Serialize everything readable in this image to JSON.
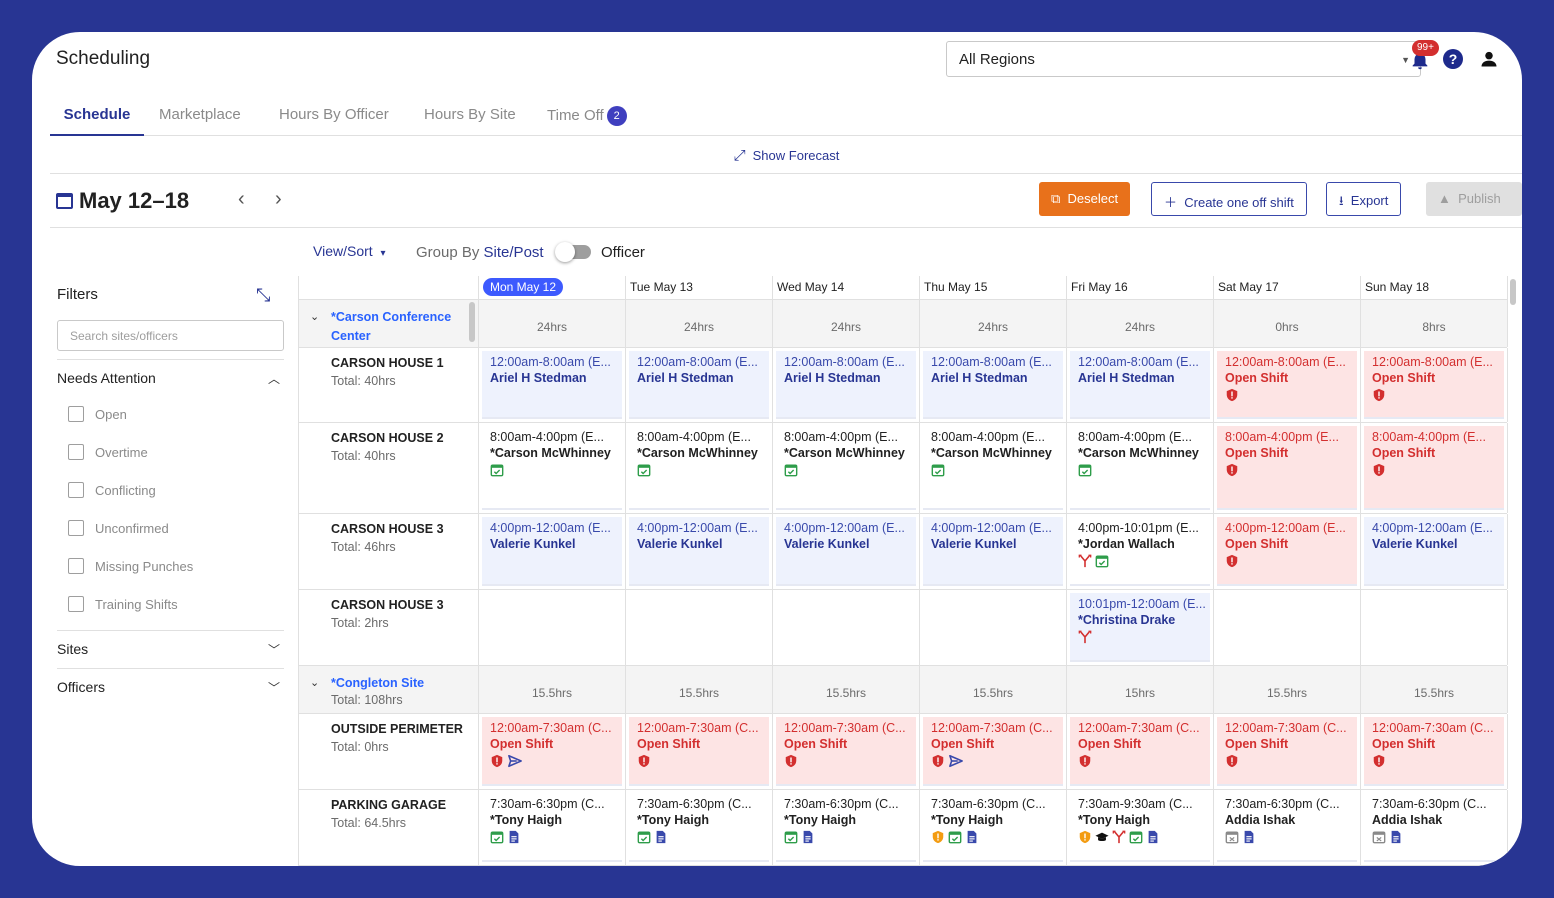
{
  "app": {
    "title": "Scheduling",
    "region_select": "All Regions",
    "notification_badge": "99+",
    "help_label": "?"
  },
  "tabs": [
    {
      "label": "Schedule",
      "active": true
    },
    {
      "label": "Marketplace"
    },
    {
      "label": "Hours By Officer"
    },
    {
      "label": "Hours By Site"
    },
    {
      "label": "Time Off",
      "badge": "2"
    }
  ],
  "forecast": {
    "label": "Show Forecast"
  },
  "toolbar": {
    "date_range": "May 12–18",
    "prev": "‹",
    "next": "›",
    "deselect": "Deselect",
    "create_shift": "Create one off shift",
    "export": "Export",
    "publish": "Publish"
  },
  "view": {
    "view_sort": "View/Sort",
    "group_by": "Group By",
    "site_post": "Site/Post",
    "officer": "Officer"
  },
  "filters": {
    "title": "Filters",
    "search_placeholder": "Search sites/officers",
    "needs_attention": "Needs Attention",
    "options": [
      "Open",
      "Overtime",
      "Conflicting",
      "Unconfirmed",
      "Missing Punches",
      "Training Shifts"
    ],
    "sites": "Sites",
    "officers": "Officers"
  },
  "days": [
    "Mon May 12",
    "Tue May 13",
    "Wed May 14",
    "Thu May 15",
    "Fri May 16",
    "Sat May 17",
    "Sun May 18"
  ],
  "sites": [
    {
      "name": "*Carson Conference Center",
      "total": "",
      "hours": [
        "24hrs",
        "24hrs",
        "24hrs",
        "24hrs",
        "24hrs",
        "0hrs",
        "8hrs"
      ]
    },
    {
      "name": "*Congleton Site",
      "total": "Total: 108hrs",
      "hours": [
        "15.5hrs",
        "15.5hrs",
        "15.5hrs",
        "15.5hrs",
        "15hrs",
        "15.5hrs",
        "15.5hrs"
      ]
    }
  ],
  "posts": [
    {
      "name": "CARSON HOUSE 1",
      "total": "Total: 40hrs",
      "shifts": [
        {
          "style": "blue",
          "time": "12:00am-8:00am (E...",
          "who": "Ariel H Stedman",
          "icons": []
        },
        {
          "style": "blue",
          "time": "12:00am-8:00am (E...",
          "who": "Ariel H Stedman",
          "icons": []
        },
        {
          "style": "blue",
          "time": "12:00am-8:00am (E...",
          "who": "Ariel H Stedman",
          "icons": []
        },
        {
          "style": "blue",
          "time": "12:00am-8:00am (E...",
          "who": "Ariel H Stedman",
          "icons": []
        },
        {
          "style": "blue",
          "time": "12:00am-8:00am (E...",
          "who": "Ariel H Stedman",
          "icons": []
        },
        {
          "style": "red",
          "time": "12:00am-8:00am (E...",
          "who": "Open Shift",
          "icons": [
            "alert-shield-icon"
          ]
        },
        {
          "style": "red",
          "time": "12:00am-8:00am (E...",
          "who": "Open Shift",
          "icons": [
            "alert-shield-icon"
          ]
        }
      ]
    },
    {
      "name": "CARSON HOUSE 2",
      "total": "Total: 40hrs",
      "shifts": [
        {
          "style": "white",
          "time": "8:00am-4:00pm (E...",
          "who": "*Carson McWhinney",
          "icons": [
            "confirmed-calendar-icon"
          ]
        },
        {
          "style": "white",
          "time": "8:00am-4:00pm (E...",
          "who": "*Carson McWhinney",
          "icons": [
            "confirmed-calendar-icon"
          ]
        },
        {
          "style": "white",
          "time": "8:00am-4:00pm (E...",
          "who": "*Carson McWhinney",
          "icons": [
            "confirmed-calendar-icon"
          ]
        },
        {
          "style": "white",
          "time": "8:00am-4:00pm (E...",
          "who": "*Carson McWhinney",
          "icons": [
            "confirmed-calendar-icon"
          ]
        },
        {
          "style": "white",
          "time": "8:00am-4:00pm (E...",
          "who": "*Carson McWhinney",
          "icons": [
            "confirmed-calendar-icon"
          ]
        },
        {
          "style": "red",
          "time": "8:00am-4:00pm (E...",
          "who": "Open Shift",
          "icons": [
            "alert-shield-icon"
          ]
        },
        {
          "style": "red",
          "time": "8:00am-4:00pm (E...",
          "who": "Open Shift",
          "icons": [
            "alert-shield-icon"
          ]
        }
      ]
    },
    {
      "name": "CARSON HOUSE 3",
      "total": "Total: 46hrs",
      "shifts": [
        {
          "style": "blue",
          "time": "4:00pm-12:00am (E...",
          "who": "Valerie Kunkel",
          "icons": []
        },
        {
          "style": "blue",
          "time": "4:00pm-12:00am (E...",
          "who": "Valerie Kunkel",
          "icons": []
        },
        {
          "style": "blue",
          "time": "4:00pm-12:00am (E...",
          "who": "Valerie Kunkel",
          "icons": []
        },
        {
          "style": "blue",
          "time": "4:00pm-12:00am (E...",
          "who": "Valerie Kunkel",
          "icons": []
        },
        {
          "style": "white",
          "time": "4:00pm-10:01pm (E...",
          "who": "*Jordan Wallach",
          "icons": [
            "split-shift-icon",
            "confirmed-calendar-icon"
          ]
        },
        {
          "style": "red",
          "time": "4:00pm-12:00am (E...",
          "who": "Open Shift",
          "icons": [
            "alert-shield-icon"
          ]
        },
        {
          "style": "blue",
          "time": "4:00pm-12:00am (E...",
          "who": "Valerie Kunkel",
          "icons": []
        }
      ]
    },
    {
      "name": "CARSON HOUSE 3",
      "total": "Total: 2hrs",
      "shifts": [
        null,
        null,
        null,
        null,
        {
          "style": "blue",
          "time": "10:01pm-12:00am (E...",
          "who": "*Christina Drake",
          "icons": [
            "split-shift-icon"
          ]
        },
        null,
        null
      ]
    },
    {
      "name": "OUTSIDE PERIMETER",
      "total": "Total: 0hrs",
      "shifts": [
        {
          "style": "red",
          "time": "12:00am-7:30am (C...",
          "who": "Open Shift",
          "icons": [
            "alert-shield-icon",
            "send-icon"
          ]
        },
        {
          "style": "red",
          "time": "12:00am-7:30am (C...",
          "who": "Open Shift",
          "icons": [
            "alert-shield-icon"
          ]
        },
        {
          "style": "red",
          "time": "12:00am-7:30am (C...",
          "who": "Open Shift",
          "icons": [
            "alert-shield-icon"
          ]
        },
        {
          "style": "red",
          "time": "12:00am-7:30am (C...",
          "who": "Open Shift",
          "icons": [
            "alert-shield-icon",
            "send-icon"
          ]
        },
        {
          "style": "red",
          "time": "12:00am-7:30am (C...",
          "who": "Open Shift",
          "icons": [
            "alert-shield-icon"
          ]
        },
        {
          "style": "red",
          "time": "12:00am-7:30am (C...",
          "who": "Open Shift",
          "icons": [
            "alert-shield-icon"
          ]
        },
        {
          "style": "red",
          "time": "12:00am-7:30am (C...",
          "who": "Open Shift",
          "icons": [
            "alert-shield-icon"
          ]
        }
      ]
    },
    {
      "name": "PARKING GARAGE",
      "total": "Total: 64.5hrs",
      "shifts": [
        {
          "style": "white",
          "time": "7:30am-6:30pm (C...",
          "who": "*Tony Haigh",
          "icons": [
            "confirmed-calendar-icon",
            "note-icon"
          ]
        },
        {
          "style": "white",
          "time": "7:30am-6:30pm (C...",
          "who": "*Tony Haigh",
          "icons": [
            "confirmed-calendar-icon",
            "note-icon"
          ]
        },
        {
          "style": "white",
          "time": "7:30am-6:30pm (C...",
          "who": "*Tony Haigh",
          "icons": [
            "confirmed-calendar-icon",
            "note-icon"
          ]
        },
        {
          "style": "white",
          "time": "7:30am-6:30pm (C...",
          "who": "*Tony Haigh",
          "icons": [
            "overtime-shield-icon",
            "confirmed-calendar-icon",
            "note-icon"
          ]
        },
        {
          "style": "white",
          "time": "7:30am-9:30am (C...",
          "who": "*Tony Haigh",
          "icons": [
            "overtime-shield-icon",
            "training-cap-icon",
            "split-shift-icon",
            "confirmed-calendar-icon",
            "note-icon"
          ]
        },
        {
          "style": "white",
          "time": "7:30am-6:30pm (C...",
          "who": "Addia Ishak",
          "icons": [
            "unconfirmed-calendar-icon",
            "note-icon"
          ]
        },
        {
          "style": "white",
          "time": "7:30am-6:30pm (C...",
          "who": "Addia Ishak",
          "icons": [
            "unconfirmed-calendar-icon",
            "note-icon"
          ]
        }
      ]
    }
  ],
  "colors": {
    "background": "#283593",
    "accent": "#283593",
    "open_shift": "#d32f2f",
    "confirmed": "#2e9d4a",
    "overtime": "#f39c12",
    "orange_button": "#e8711b"
  }
}
